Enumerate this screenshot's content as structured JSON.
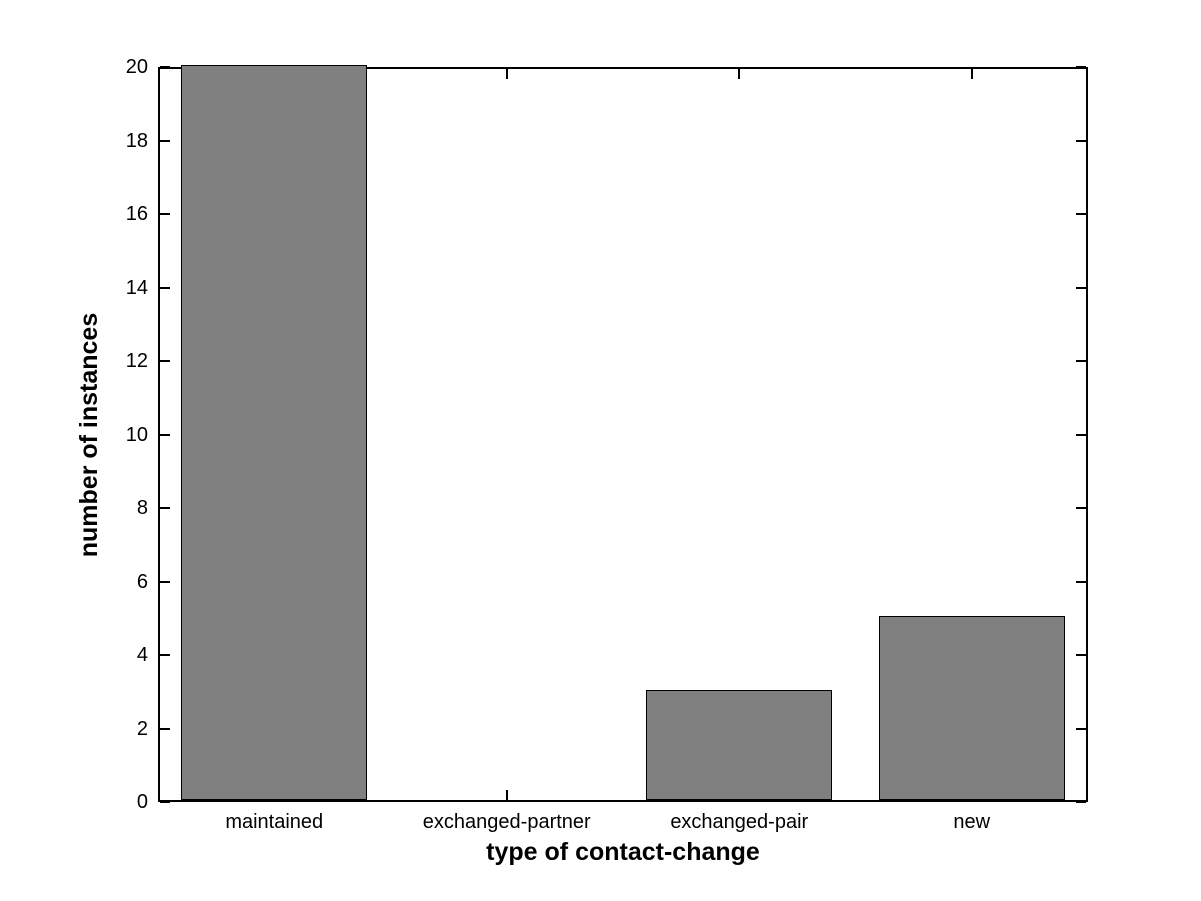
{
  "chart_data": {
    "type": "bar",
    "categories": [
      "maintained",
      "exchanged-partner",
      "exchanged-pair",
      "new"
    ],
    "values": [
      20,
      0,
      3,
      5
    ],
    "title": "",
    "xlabel": "type of contact-change",
    "ylabel": "number of instances",
    "ylim": [
      0,
      20
    ],
    "ytick_step": 2,
    "xticks_at_category_centers": true,
    "grid": false,
    "legend": null,
    "box": true,
    "tick_direction": "in",
    "bar_width_fraction": 0.8,
    "bar_color": "#808080",
    "bar_edge_color": "#000000",
    "axis_color": "#000000",
    "text_color": "#000000",
    "background_color": "#ffffff"
  }
}
